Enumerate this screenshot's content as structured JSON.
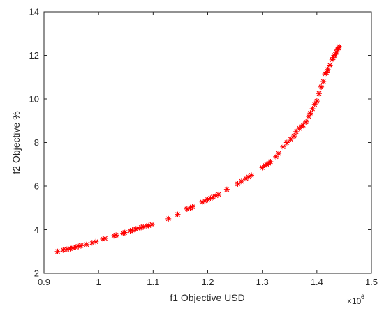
{
  "chart_data": {
    "type": "scatter",
    "title": "",
    "xlabel": "f1 Objective  USD",
    "ylabel": "f2 Objective  %",
    "x_multiplier_label": "×10",
    "x_multiplier_exp": "6",
    "xlim": [
      0.9,
      1.5
    ],
    "ylim": [
      2,
      14
    ],
    "xticks": [
      0.9,
      1,
      1.1,
      1.2,
      1.3,
      1.4,
      1.5
    ],
    "xtick_labels": [
      "0.9",
      "1",
      "1.1",
      "1.2",
      "1.3",
      "1.4",
      "1.5"
    ],
    "yticks": [
      2,
      4,
      6,
      8,
      10,
      12,
      14
    ],
    "ytick_labels": [
      "2",
      "4",
      "6",
      "8",
      "10",
      "12",
      "14"
    ],
    "grid": false,
    "marker": "asterisk",
    "color": "#ff0000",
    "series": [
      {
        "x": [
          0.925,
          0.935,
          0.942,
          0.948,
          0.953,
          0.958,
          0.963,
          0.968,
          0.978,
          0.988,
          0.995,
          1.008,
          1.012,
          1.028,
          1.032,
          1.045,
          1.048,
          1.058,
          1.062,
          1.068,
          1.072,
          1.078,
          1.082,
          1.088,
          1.092,
          1.098,
          1.128,
          1.145,
          1.162,
          1.168,
          1.172,
          1.19,
          1.195,
          1.2,
          1.205,
          1.21,
          1.215,
          1.22,
          1.235,
          1.255,
          1.262,
          1.27,
          1.275,
          1.28,
          1.3,
          1.305,
          1.308,
          1.312,
          1.315,
          1.325,
          1.33,
          1.338,
          1.345,
          1.352,
          1.358,
          1.362,
          1.368,
          1.372,
          1.375,
          1.38,
          1.385,
          1.388,
          1.392,
          1.396,
          1.4,
          1.404,
          1.408,
          1.412,
          1.415,
          1.418,
          1.42,
          1.424,
          1.428,
          1.43,
          1.432,
          1.434,
          1.436,
          1.438,
          1.44,
          1.441
        ],
        "y": [
          3.0,
          3.07,
          3.1,
          3.13,
          3.17,
          3.2,
          3.23,
          3.27,
          3.32,
          3.4,
          3.45,
          3.57,
          3.6,
          3.72,
          3.75,
          3.84,
          3.87,
          3.95,
          3.98,
          4.03,
          4.06,
          4.1,
          4.13,
          4.17,
          4.19,
          4.24,
          4.5,
          4.7,
          4.95,
          5.0,
          5.05,
          5.27,
          5.32,
          5.38,
          5.44,
          5.5,
          5.56,
          5.62,
          5.85,
          6.1,
          6.22,
          6.35,
          6.42,
          6.5,
          6.85,
          6.95,
          7.0,
          7.05,
          7.12,
          7.35,
          7.5,
          7.8,
          8.0,
          8.15,
          8.3,
          8.5,
          8.65,
          8.75,
          8.8,
          8.95,
          9.2,
          9.35,
          9.55,
          9.75,
          9.9,
          10.25,
          10.55,
          10.8,
          11.15,
          11.2,
          11.35,
          11.55,
          11.8,
          11.9,
          12.0,
          12.05,
          12.15,
          12.25,
          12.35,
          12.4
        ]
      }
    ]
  }
}
